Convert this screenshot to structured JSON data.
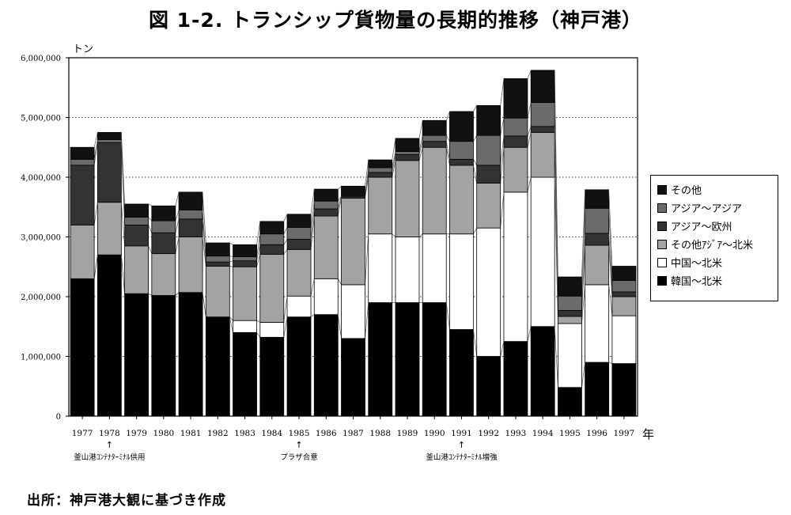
{
  "title": "図 1-2. トランシップ貨物量の長期的推移（神戸港）",
  "source_note": "出所：神戸港大観に基づき作成",
  "chart_data": {
    "type": "bar",
    "stacked": true,
    "y_unit_label": "トン",
    "x_unit_label": "年",
    "categories": [
      "1977",
      "1978",
      "1979",
      "1980",
      "1981",
      "1982",
      "1983",
      "1984",
      "1985",
      "1986",
      "1987",
      "1988",
      "1989",
      "1990",
      "1991",
      "1992",
      "1993",
      "1994",
      "1995",
      "1996",
      "1997"
    ],
    "ylim": [
      0,
      6000000
    ],
    "yticks": [
      0,
      1000000,
      2000000,
      3000000,
      4000000,
      5000000,
      6000000
    ],
    "ytick_labels": [
      "0",
      "1,000,000",
      "2,000,000",
      "3,000,000",
      "4,000,000",
      "5,000,000",
      "6,000,000"
    ],
    "grid": true,
    "legend_position": "right",
    "series": [
      {
        "name": "韓国～北米",
        "color": "#000000",
        "values": [
          2300000,
          2700000,
          2050000,
          2020000,
          2070000,
          1660000,
          1400000,
          1320000,
          1660000,
          1700000,
          1300000,
          1900000,
          1900000,
          1900000,
          1450000,
          1000000,
          1250000,
          1500000,
          480000,
          900000,
          880000
        ]
      },
      {
        "name": "中国～北米",
        "color": "#ffffff",
        "values": [
          0,
          0,
          0,
          0,
          0,
          0,
          200000,
          250000,
          350000,
          600000,
          900000,
          1150000,
          1100000,
          1150000,
          1600000,
          2150000,
          2500000,
          2500000,
          1070000,
          1300000,
          800000
        ]
      },
      {
        "name": "その他ｱｼﾞｱ～北米",
        "color": "#a3a3a3",
        "values": [
          900000,
          880000,
          800000,
          700000,
          930000,
          850000,
          900000,
          1140000,
          780000,
          1050000,
          1450000,
          950000,
          1280000,
          1450000,
          1150000,
          750000,
          750000,
          750000,
          120000,
          660000,
          320000
        ]
      },
      {
        "name": "アジア～欧州",
        "color": "#333333",
        "values": [
          1000000,
          1000000,
          350000,
          350000,
          300000,
          70000,
          100000,
          160000,
          170000,
          120000,
          30000,
          80000,
          100000,
          100000,
          100000,
          300000,
          190000,
          100000,
          100000,
          200000,
          80000
        ]
      },
      {
        "name": "アジア～アジア",
        "color": "#6b6b6b",
        "values": [
          100000,
          50000,
          130000,
          200000,
          150000,
          100000,
          70000,
          180000,
          200000,
          130000,
          0,
          80000,
          50000,
          100000,
          300000,
          500000,
          300000,
          400000,
          240000,
          420000,
          190000
        ]
      },
      {
        "name": "その他",
        "color": "#111111",
        "values": [
          200000,
          120000,
          220000,
          250000,
          300000,
          220000,
          200000,
          210000,
          220000,
          200000,
          170000,
          130000,
          220000,
          250000,
          500000,
          500000,
          660000,
          540000,
          320000,
          310000,
          240000
        ]
      }
    ],
    "legend_order": [
      "その他",
      "アジア～アジア",
      "アジア～欧州",
      "その他ｱｼﾞｱ～北米",
      "中国～北米",
      "韓国～北米"
    ],
    "annotations": [
      {
        "x": "1978",
        "text": "釜山港ｺﾝﾃﾅﾀｰﾐﾅﾙ供用",
        "arrow": "↑"
      },
      {
        "x": "1985",
        "text": "プラザ合意",
        "arrow": "↑"
      },
      {
        "x": "1991",
        "text": "釜山港ｺﾝﾃﾅﾀｰﾐﾅﾙ増強",
        "arrow": "↑"
      }
    ]
  }
}
